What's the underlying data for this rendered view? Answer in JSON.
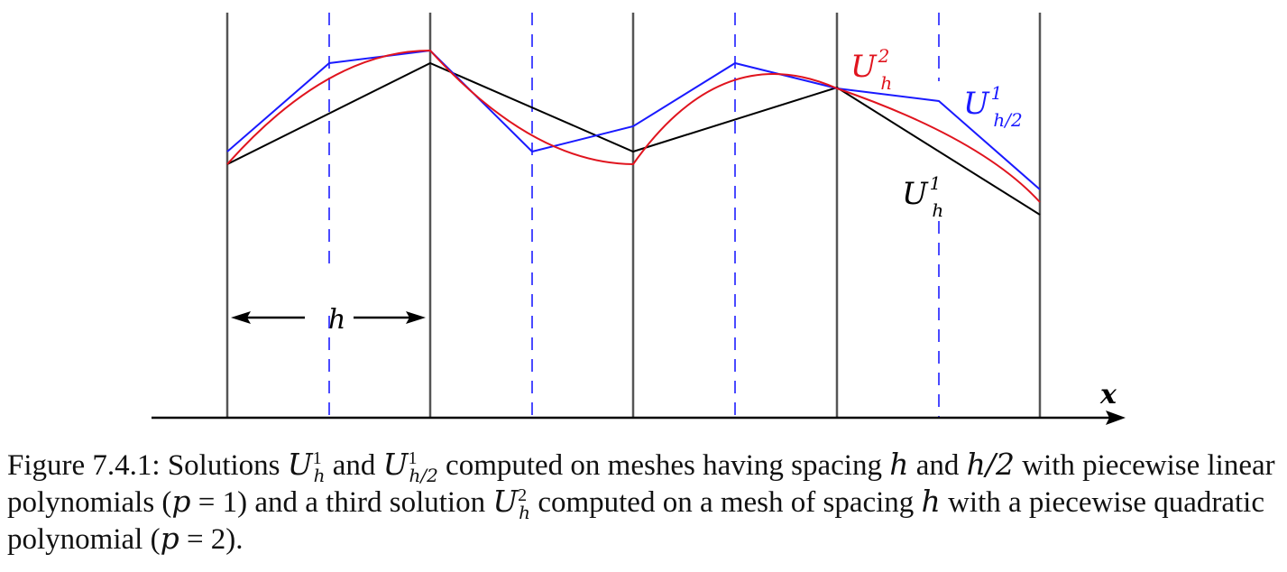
{
  "figure": {
    "x_axis_label": "x",
    "spacing_label": "h",
    "curves": [
      {
        "id": "u-h2",
        "base": "U",
        "sub": "h",
        "sup": "2",
        "color": "#e0141e"
      },
      {
        "id": "u-h2-half",
        "base": "U",
        "sub": "h/2",
        "sup": "1",
        "color": "#1a1aff"
      },
      {
        "id": "u-h1",
        "base": "U",
        "sub": "h",
        "sup": "1",
        "color": "#000000"
      }
    ],
    "colors": {
      "mesh_lines": "#555555",
      "half_mesh_lines": "#4a4aff"
    }
  },
  "caption": {
    "part1": "Figure 7.4.1: Solutions ",
    "u1_base": "U",
    "u1_sub": "h",
    "u1_sup": "1",
    "part2": " and ",
    "u2_base": "U",
    "u2_sub": "h/2",
    "u2_sup": "1",
    "part3": " computed on meshes having spacing ",
    "h1": "h",
    "part4": " and ",
    "h2": "h/2",
    "part5": " with piecewise linear polynomials (",
    "p1": "p",
    "part6": " = 1) and a third solution ",
    "u3_base": "U",
    "u3_sub": "h",
    "u3_sup": "2",
    "part7": " computed on a mesh of spacing ",
    "h3": "h",
    "part8": " with a piecewise quadratic polynomial (",
    "p2": "p",
    "part9": " = 2)."
  }
}
